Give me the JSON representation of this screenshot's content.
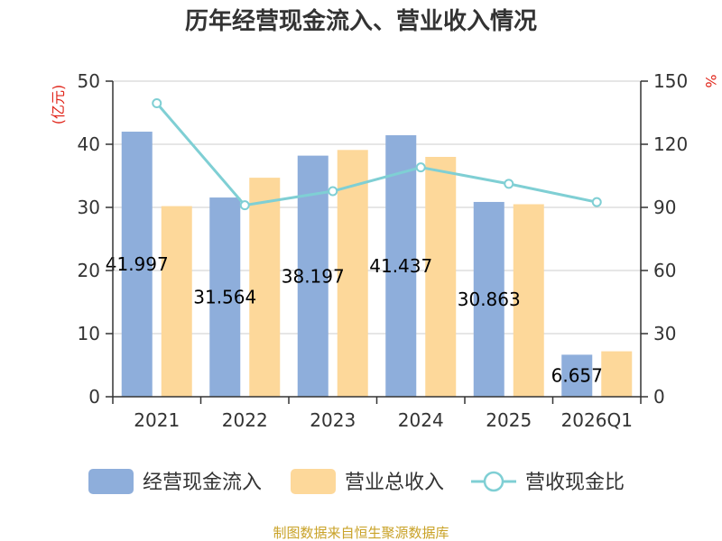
{
  "chart_data": {
    "type": "bar",
    "title": "历年经营现金流入、营业收入情况",
    "categories": [
      "2021",
      "2022",
      "2023",
      "2024",
      "2025",
      "2026Q1"
    ],
    "left_axis": {
      "unit": "(亿元)",
      "ylim": [
        0,
        50
      ],
      "ticks": [
        "0",
        "10",
        "20",
        "30",
        "40",
        "50"
      ]
    },
    "right_axis": {
      "unit": "%",
      "ylim": [
        0,
        150
      ],
      "ticks": [
        "0",
        "30",
        "60",
        "90",
        "120",
        "150"
      ]
    },
    "series": [
      {
        "name": "经营现金流入",
        "kind": "bar",
        "axis": "left",
        "color": "#8eaedb",
        "values": [
          41.997,
          31.564,
          38.197,
          41.437,
          30.863,
          6.657
        ],
        "labels": [
          "41.997",
          "31.564",
          "38.197",
          "41.437",
          "30.863",
          "6.657"
        ]
      },
      {
        "name": "营业总收入",
        "kind": "bar",
        "axis": "left",
        "color": "#fdd89a",
        "values": [
          30.2,
          34.7,
          39.1,
          38.0,
          30.5,
          7.2
        ]
      },
      {
        "name": "营收现金比",
        "kind": "line",
        "axis": "right",
        "color": "#7fcfd4",
        "values": [
          139.5,
          91.0,
          97.7,
          109.0,
          101.2,
          92.5
        ]
      }
    ],
    "grid": true,
    "legend_position": "bottom"
  },
  "footer": {
    "source": "制图数据来自恒生聚源数据库"
  }
}
